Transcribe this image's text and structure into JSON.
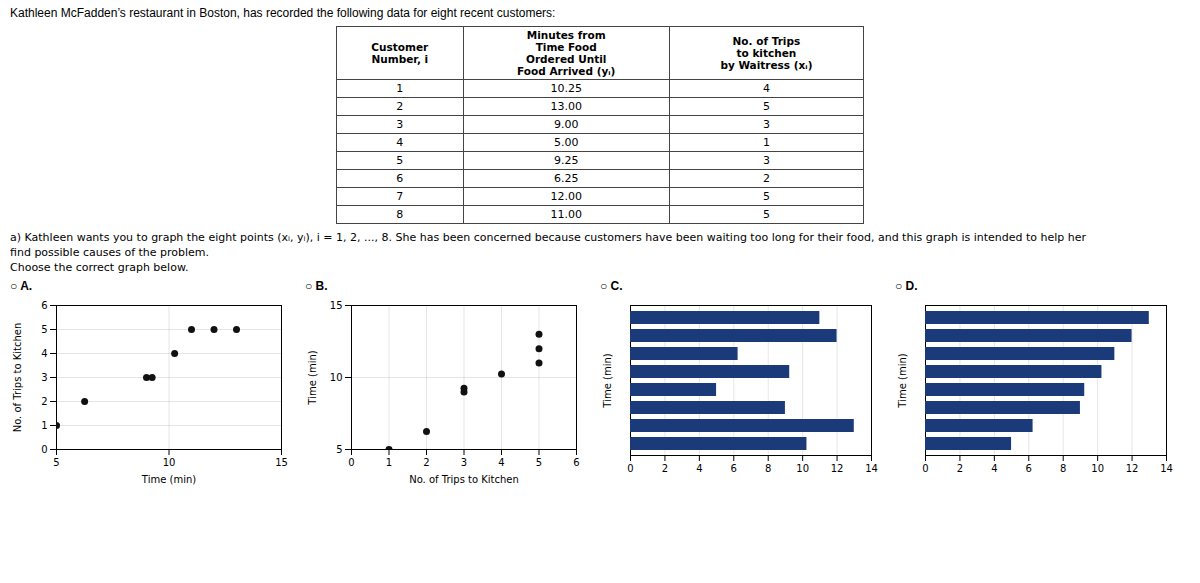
{
  "chart_data": [
    {
      "type": "table",
      "title": "Kathleen McFadden’s restaurant in Boston, has recorded the following data for eight recent customers:",
      "columns": [
        "Customer\nNumber, i",
        "Minutes from\nTime Food\nOrdered Until\nFood Arrived (yᵢ)",
        "No. of Trips\nto kitchen\nby Waitress (xᵢ)"
      ],
      "rows": [
        [
          1,
          10.25,
          4
        ],
        [
          2,
          {
            "value": 13.0,
            "label": "13.00"
          },
          5
        ],
        [
          3,
          {
            "value": 9.0,
            "label": "9.00"
          },
          3
        ],
        [
          4,
          {
            "value": 5.0,
            "label": "5.00"
          },
          1
        ],
        [
          5,
          9.25,
          3
        ],
        [
          6,
          6.25,
          2
        ],
        [
          7,
          {
            "value": 12.0,
            "label": "12.00"
          },
          5
        ],
        [
          8,
          {
            "value": 11.0,
            "label": "11.00"
          },
          5
        ]
      ],
      "annotations": [
        "a) Kathleen wants you to graph the eight points (xᵢ, yᵢ), i = 1, 2, ..., 8. She has been concerned because customers have been waiting too long for their food, and this graph is intended to help her",
        "find possible causes of the problem.",
        "Choose the correct graph below."
      ]
    },
    {
      "type": "scatter",
      "title": "○ A.",
      "x": [
        10.25,
        13.0,
        9.0,
        5.0,
        9.25,
        6.25,
        12.0,
        11.0
      ],
      "values": [
        4,
        5,
        3,
        1,
        3,
        2,
        5,
        5
      ],
      "xlabel": "Time (min)",
      "ylabel": "No. of Trips to Kitchen",
      "xlim": [
        5,
        15
      ],
      "ylim": [
        0,
        6
      ],
      "xticks": [
        5,
        10,
        15
      ],
      "yticks": [
        0,
        1,
        2,
        3,
        4,
        5,
        6
      ],
      "grid": true,
      "color": "#111111"
    },
    {
      "type": "scatter",
      "title": "○ B.",
      "x": [
        4,
        5,
        3,
        1,
        3,
        2,
        5,
        5
      ],
      "values": [
        10.25,
        13.0,
        9.0,
        5.0,
        9.25,
        6.25,
        12.0,
        11.0
      ],
      "xlabel": "No. of Trips to Kitchen",
      "ylabel": "Time (min)",
      "xlim": [
        0,
        6
      ],
      "ylim": [
        5,
        15
      ],
      "xticks": [
        0,
        1,
        2,
        3,
        4,
        5,
        6
      ],
      "yticks": [
        5,
        10,
        15
      ],
      "grid": true,
      "color": "#111111"
    },
    {
      "type": "bar",
      "title": "○ C.",
      "orientation": "horizontal",
      "categories": [
        null,
        null,
        null,
        null,
        null,
        null,
        null,
        null
      ],
      "values": [
        10.25,
        13.0,
        9.0,
        5.0,
        9.25,
        6.25,
        12.0,
        11.0
      ],
      "ylabel": "Time (min)",
      "xlim": [
        0,
        14
      ],
      "xticks": [
        0,
        2,
        4,
        6,
        8,
        10,
        12,
        14
      ],
      "grid": true,
      "tick_labels": "x",
      "color": "#1a3a7a"
    },
    {
      "type": "bar",
      "title": "○ D.",
      "orientation": "horizontal",
      "categories": [
        null,
        null,
        null,
        null,
        null,
        null,
        null,
        null
      ],
      "values": [
        5.0,
        6.25,
        9.0,
        9.25,
        10.25,
        11.0,
        12.0,
        13.0
      ],
      "ylabel": "Time (min)",
      "xlim": [
        0,
        14
      ],
      "xticks": [
        0,
        2,
        4,
        6,
        8,
        10,
        12,
        14
      ],
      "grid": true,
      "tick_labels": "x",
      "color": "#1a3a7a"
    }
  ]
}
